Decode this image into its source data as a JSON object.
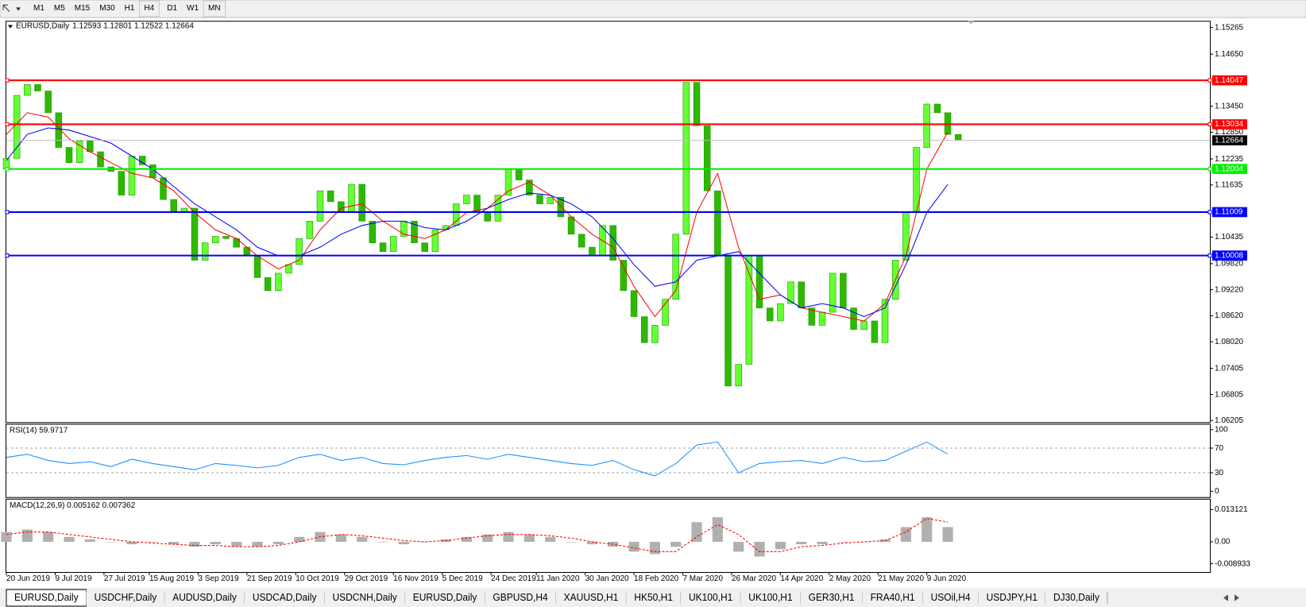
{
  "toolbar": {
    "timeframes": [
      "M1",
      "M5",
      "M15",
      "M30",
      "H1",
      "H4",
      "D1",
      "W1",
      "MN"
    ]
  },
  "tabs": [
    "EURUSD,Daily",
    "USDCHF,Daily",
    "AUDUSD,Daily",
    "USDCAD,Daily",
    "USDCNH,Daily",
    "EURUSD,Daily",
    "GBPUSD,H4",
    "XAUUSD,H1",
    "HK50,H1",
    "UK100,H1",
    "UK100,H1",
    "GER30,H1",
    "FRA40,H1",
    "USOil,H4",
    "USDJPY,H1",
    "DJ30,Daily"
  ],
  "chart_data": [
    {
      "type": "candlestick",
      "title": "EURUSD,Daily",
      "ohlc": "1.12593 1.12801 1.12522 1.12664",
      "up_color": "#66ff33",
      "down_color": "#2fb800",
      "x": [
        0,
        3,
        6,
        9,
        12,
        15,
        18,
        21,
        24,
        27,
        30,
        33,
        36,
        39,
        42,
        45,
        48,
        51,
        54,
        57,
        60,
        63,
        66,
        69,
        72,
        75,
        78,
        81,
        84,
        87,
        90,
        93,
        96,
        99,
        102,
        105,
        108,
        111,
        114,
        117,
        120,
        123,
        126,
        129,
        132,
        135,
        138,
        141,
        144,
        147,
        150,
        153,
        156,
        159,
        162,
        165,
        168,
        171,
        174,
        177,
        180,
        183,
        186,
        189,
        192,
        195,
        198,
        201,
        204,
        207,
        210,
        213,
        216,
        219,
        222,
        225,
        228,
        231,
        234,
        237,
        240,
        243,
        246,
        249,
        252,
        255,
        258,
        261,
        264,
        267,
        270,
        273
      ],
      "open": [
        1.12,
        1.1225,
        1.137,
        1.1395,
        1.138,
        1.133,
        1.125,
        1.1215,
        1.1265,
        1.124,
        1.1205,
        1.1195,
        1.114,
        1.123,
        1.121,
        1.118,
        1.113,
        1.11,
        1.111,
        1.099,
        1.103,
        1.1045,
        1.104,
        1.102,
        1.1,
        1.095,
        1.092,
        1.096,
        1.098,
        1.104,
        1.108,
        1.115,
        1.1125,
        1.11,
        1.1165,
        1.108,
        1.103,
        1.101,
        1.1045,
        1.108,
        1.103,
        1.101,
        1.106,
        1.107,
        1.112,
        1.114,
        1.11,
        1.108,
        1.114,
        1.12,
        1.1175,
        1.114,
        1.112,
        1.1135,
        1.109,
        1.105,
        1.102,
        1.1,
        1.107,
        1.099,
        1.092,
        1.086,
        1.08,
        1.084,
        1.09,
        1.105,
        1.14,
        1.13,
        1.115,
        1.1,
        1.07,
        1.075,
        1.1,
        1.088,
        1.085,
        1.089,
        1.094,
        1.088,
        1.084,
        1.087,
        1.096,
        1.088,
        1.083,
        1.085,
        1.08,
        1.09,
        1.099,
        1.11,
        1.125,
        1.135,
        1.133,
        1.128
      ],
      "close": [
        1.1225,
        1.137,
        1.1395,
        1.138,
        1.133,
        1.125,
        1.1215,
        1.1265,
        1.124,
        1.1205,
        1.1195,
        1.114,
        1.123,
        1.121,
        1.118,
        1.113,
        1.11,
        1.111,
        1.099,
        1.103,
        1.1045,
        1.104,
        1.102,
        1.1,
        1.095,
        1.092,
        1.096,
        1.098,
        1.104,
        1.108,
        1.115,
        1.1125,
        1.11,
        1.1165,
        1.108,
        1.103,
        1.101,
        1.1045,
        1.108,
        1.103,
        1.101,
        1.106,
        1.107,
        1.112,
        1.114,
        1.11,
        1.108,
        1.114,
        1.12,
        1.1175,
        1.114,
        1.112,
        1.1135,
        1.109,
        1.105,
        1.102,
        1.1,
        1.107,
        1.099,
        1.092,
        1.086,
        1.08,
        1.084,
        1.09,
        1.105,
        1.14,
        1.13,
        1.115,
        1.1,
        1.07,
        1.075,
        1.1,
        1.088,
        1.085,
        1.089,
        1.094,
        1.088,
        1.084,
        1.087,
        1.096,
        1.088,
        1.083,
        1.085,
        1.08,
        1.09,
        1.099,
        1.11,
        1.125,
        1.135,
        1.133,
        1.128,
        1.1266
      ],
      "ma_x": [
        0,
        6,
        12,
        18,
        24,
        30,
        36,
        42,
        48,
        54,
        60,
        66,
        72,
        78,
        84,
        90,
        96,
        102,
        108,
        114,
        120,
        126,
        132,
        138,
        144,
        150,
        156,
        162,
        168,
        174,
        180,
        186,
        192,
        198,
        204,
        210,
        216,
        222,
        228,
        234,
        240,
        246,
        252,
        258,
        264,
        270
      ],
      "moving_averages": [
        {
          "color": "#ff0000",
          "values": [
            1.128,
            1.133,
            1.132,
            1.127,
            1.124,
            1.1215,
            1.119,
            1.118,
            1.115,
            1.11,
            1.106,
            1.104,
            1.1,
            1.097,
            1.099,
            1.106,
            1.111,
            1.112,
            1.108,
            1.105,
            1.104,
            1.106,
            1.11,
            1.111,
            1.115,
            1.117,
            1.114,
            1.109,
            1.105,
            1.102,
            1.093,
            1.086,
            1.092,
            1.11,
            1.119,
            1.102,
            1.09,
            1.091,
            1.088,
            1.087,
            1.086,
            1.085,
            1.089,
            1.1,
            1.12,
            1.1285
          ]
        },
        {
          "color": "#0000ff",
          "values": [
            1.122,
            1.128,
            1.1295,
            1.129,
            1.1275,
            1.126,
            1.123,
            1.12,
            1.116,
            1.112,
            1.109,
            1.106,
            1.102,
            1.1,
            1.1,
            1.102,
            1.105,
            1.107,
            1.108,
            1.108,
            1.1065,
            1.106,
            1.108,
            1.111,
            1.113,
            1.1145,
            1.114,
            1.112,
            1.109,
            1.104,
            1.098,
            1.093,
            1.094,
            1.099,
            1.1,
            1.101,
            1.096,
            1.091,
            1.088,
            1.089,
            1.088,
            1.086,
            1.088,
            1.098,
            1.11,
            1.1165
          ]
        }
      ],
      "levels": [
        {
          "value": 1.14047,
          "color": "#ff0000"
        },
        {
          "value": 1.13034,
          "color": "#ff0000"
        },
        {
          "value": 1.12004,
          "color": "#00ee00"
        },
        {
          "value": 1.11009,
          "color": "#0000ff"
        },
        {
          "value": 1.10008,
          "color": "#0000ff"
        }
      ],
      "current": 1.12664,
      "xlim": [
        0,
        275
      ],
      "ylim": [
        1.06167,
        1.15419
      ],
      "yticks": [
        1.15265,
        {
          "value": 1.1465,
          "label": "1.14650"
        },
        {
          "value": 1.1345,
          "label": "1.13450"
        },
        {
          "value": 1.1285,
          "label": "1.12850"
        },
        1.12235,
        1.11635,
        1.10435,
        {
          "value": 1.0982,
          "label": "1.09820"
        },
        {
          "value": 1.0922,
          "label": "1.09220"
        },
        {
          "value": 1.0862,
          "label": "1.08620"
        },
        {
          "value": 1.0802,
          "label": "1.08020"
        },
        1.07405,
        1.06805,
        1.06205
      ],
      "xticks": [
        {
          "value": 0,
          "label": "20 Jun 2019"
        },
        {
          "value": 14,
          "label": "9 Jul 2019"
        },
        {
          "value": 28,
          "label": "27 Jul 2019"
        },
        {
          "value": 41,
          "label": "15 Aug 2019"
        },
        {
          "value": 55,
          "label": "3 Sep 2019"
        },
        {
          "value": 69,
          "label": "21 Sep 2019"
        },
        {
          "value": 83,
          "label": "10 Oct 2019"
        },
        {
          "value": 97,
          "label": "29 Oct 2019"
        },
        {
          "value": 111,
          "label": "16 Nov 2019"
        },
        {
          "value": 125,
          "label": "5 Dec 2019"
        },
        {
          "value": 139,
          "label": "24 Dec 2019"
        },
        {
          "value": 152,
          "label": "11 Jan 2020"
        },
        {
          "value": 166,
          "label": "30 Jan 2020"
        },
        {
          "value": 180,
          "label": "18 Feb 2020"
        },
        {
          "value": 194,
          "label": "7 Mar 2020"
        },
        {
          "value": 208,
          "label": "26 Mar 2020"
        },
        {
          "value": 222,
          "label": "14 Apr 2020"
        },
        {
          "value": 236,
          "label": "2 May 2020"
        },
        {
          "value": 250,
          "label": "21 May 2020"
        },
        {
          "value": 264,
          "label": "9 Jun 2020"
        }
      ]
    },
    {
      "type": "line",
      "title": "RSI(14) 59.9717",
      "color": "#1e90ff",
      "x": [
        0,
        6,
        12,
        18,
        24,
        30,
        36,
        42,
        48,
        54,
        60,
        66,
        72,
        78,
        84,
        90,
        96,
        102,
        108,
        114,
        120,
        126,
        132,
        138,
        144,
        150,
        156,
        162,
        168,
        174,
        180,
        186,
        192,
        198,
        204,
        210,
        216,
        222,
        228,
        234,
        240,
        246,
        252,
        258,
        264,
        270
      ],
      "values": [
        55,
        60,
        50,
        45,
        48,
        40,
        52,
        45,
        40,
        35,
        45,
        42,
        38,
        42,
        55,
        60,
        50,
        55,
        45,
        43,
        50,
        55,
        58,
        52,
        60,
        55,
        50,
        45,
        42,
        50,
        35,
        25,
        45,
        75,
        80,
        30,
        45,
        48,
        50,
        45,
        55,
        48,
        50,
        65,
        80,
        60
      ],
      "xlim": [
        0,
        275
      ],
      "ylim": [
        -9.5,
        108.1
      ],
      "yticks": [
        0,
        30,
        70,
        100
      ],
      "levels": [
        30,
        70
      ]
    },
    {
      "type": "macd",
      "title": "MACD(12,26,9) 0.005162 0.007362",
      "hist_color": "#b0b0b0",
      "signal_color": "#ff0000",
      "x": [
        0,
        6,
        12,
        18,
        24,
        30,
        36,
        42,
        48,
        54,
        60,
        66,
        72,
        78,
        84,
        90,
        96,
        102,
        108,
        114,
        120,
        126,
        132,
        138,
        144,
        150,
        156,
        162,
        168,
        174,
        180,
        186,
        192,
        198,
        204,
        210,
        216,
        222,
        228,
        234,
        240,
        246,
        252,
        258,
        264,
        270
      ],
      "histogram": [
        0.004,
        0.005,
        0.004,
        0.002,
        0.001,
        0,
        -0.001,
        0,
        -0.001,
        -0.002,
        -0.001,
        -0.002,
        -0.002,
        -0.001,
        0.002,
        0.004,
        0.003,
        0.002,
        0,
        -0.001,
        0,
        0.001,
        0.002,
        0.003,
        0.004,
        0.003,
        0.002,
        0,
        -0.001,
        -0.002,
        -0.004,
        -0.005,
        -0.002,
        0.008,
        0.01,
        -0.004,
        -0.006,
        -0.003,
        -0.001,
        -0.001,
        0,
        0,
        0.001,
        0.006,
        0.01,
        0.006
      ],
      "signal": [
        0.003,
        0.004,
        0.004,
        0.003,
        0.002,
        0.001,
        0,
        -0.0005,
        -0.001,
        -0.0015,
        -0.0015,
        -0.002,
        -0.002,
        -0.0015,
        0,
        0.002,
        0.003,
        0.0025,
        0.0015,
        0.0005,
        0,
        0.0005,
        0.0015,
        0.0025,
        0.003,
        0.003,
        0.0025,
        0.0015,
        0,
        -0.001,
        -0.0025,
        -0.004,
        -0.004,
        0.002,
        0.007,
        0.003,
        -0.004,
        -0.004,
        -0.002,
        -0.0015,
        -0.0005,
        0,
        0.0005,
        0.004,
        0.0095,
        0.008
      ],
      "xlim": [
        0,
        275
      ],
      "ylim": [
        -0.0123,
        0.0172
      ],
      "yticks": [
        0.013121,
        {
          "value": 0,
          "label": "0.00"
        },
        -0.008933
      ]
    }
  ]
}
